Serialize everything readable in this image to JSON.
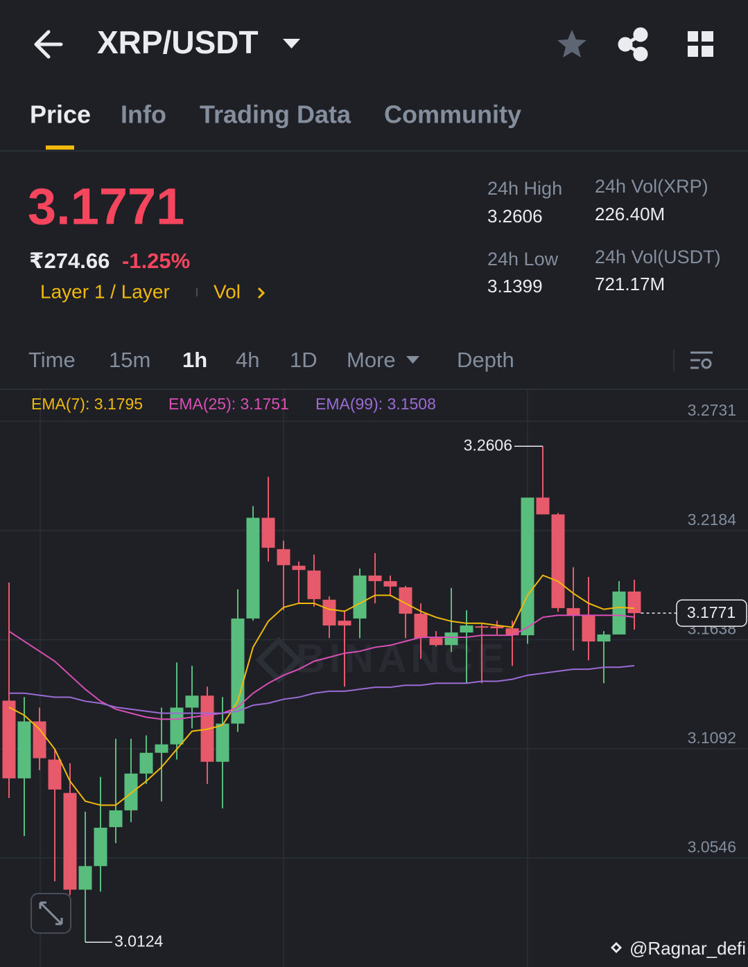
{
  "header": {
    "pair": "XRP/USDT"
  },
  "tabs": [
    "Price",
    "Info",
    "Trading Data",
    "Community"
  ],
  "price": {
    "last": "3.1771",
    "local": "₹274.66",
    "change": "-1.25%",
    "tags": [
      "Layer 1 / Layer",
      "Vol"
    ]
  },
  "stats": [
    {
      "label": "24h High",
      "value": "3.2606"
    },
    {
      "label": "24h Vol(XRP)",
      "value": "226.40M"
    },
    {
      "label": "24h Low",
      "value": "3.1399"
    },
    {
      "label": "24h Vol(USDT)",
      "value": "721.17M"
    }
  ],
  "intervals": [
    "Time",
    "15m",
    "1h",
    "4h",
    "1D",
    "More",
    "Depth"
  ],
  "chart_data": {
    "type": "candlestick",
    "watermark": "BINANCE",
    "up_color": "#58bd7d",
    "down_color": "#e75a6b",
    "grid": true,
    "ylim": [
      3.0,
      3.2891
    ],
    "yticks": [
      3.2731,
      3.2184,
      3.1638,
      3.1092,
      3.0546
    ],
    "open": [
      3.1333,
      3.0944,
      3.1229,
      3.1038,
      3.0871,
      3.0387,
      3.0505,
      3.07,
      3.0784,
      3.0968,
      3.1072,
      3.1114,
      3.1298,
      3.1358,
      3.1027,
      3.1218,
      3.1744,
      3.2248,
      3.2091,
      3.2008,
      3.1984,
      3.1838,
      3.1733,
      3.1744,
      3.1959,
      3.1931,
      3.19,
      3.1768,
      3.1646,
      3.1611,
      3.1674,
      3.1705,
      3.1705,
      3.1695,
      3.166,
      3.2349,
      3.2265,
      3.1796,
      3.1761,
      3.1629,
      3.1664,
      3.1879
    ],
    "high": [
      3.1924,
      3.1351,
      3.1298,
      3.109,
      3.102,
      3.0777,
      3.0951,
      3.1142,
      3.1142,
      3.1159,
      3.1298,
      3.1524,
      3.1507,
      3.1403,
      3.1351,
      3.189,
      3.2307,
      3.2453,
      3.2133,
      3.2029,
      3.2064,
      3.1855,
      3.1785,
      3.1994,
      3.2071,
      3.1959,
      3.1907,
      3.182,
      3.1681,
      3.1897,
      3.1785,
      3.1716,
      3.1733,
      3.1733,
      3.2349,
      3.2606,
      3.2272,
      3.2001,
      3.1952,
      3.1681,
      3.1931,
      3.1938
    ],
    "low": [
      3.0846,
      3.0655,
      3.0985,
      3.0429,
      3.0359,
      3.0124,
      3.0377,
      3.062,
      3.0725,
      3.0916,
      3.0829,
      3.1038,
      3.1194,
      3.0916,
      3.0794,
      3.1177,
      3.1733,
      3.2029,
      3.1785,
      3.182,
      3.1803,
      3.1646,
      3.1403,
      3.1646,
      3.182,
      3.1855,
      3.1646,
      3.1542,
      3.1604,
      3.1577,
      3.142,
      3.142,
      3.1664,
      3.1507,
      3.1618,
      3.2265,
      3.1778,
      3.1584,
      3.1535,
      3.142,
      3.1664,
      3.1688
    ],
    "close": [
      3.0944,
      3.1229,
      3.1045,
      3.0888,
      3.0387,
      3.0505,
      3.0697,
      3.0784,
      3.0968,
      3.1072,
      3.1114,
      3.1298,
      3.1358,
      3.1027,
      3.1218,
      3.1744,
      3.2248,
      3.2098,
      3.2011,
      3.1987,
      3.1841,
      3.1709,
      3.1709,
      3.1959,
      3.1931,
      3.1904,
      3.1768,
      3.1646,
      3.1611,
      3.1674,
      3.1709,
      3.1698,
      3.1695,
      3.166,
      3.2349,
      3.2265,
      3.1796,
      3.1761,
      3.1629,
      3.1664,
      3.1879,
      3.1771
    ],
    "series": [
      {
        "name": "EMA(7): 3.1795",
        "color": "#f0b90b",
        "values": [
          3.13,
          3.126,
          3.119,
          3.109,
          3.093,
          3.083,
          3.081,
          3.081,
          3.087,
          3.093,
          3.1,
          3.109,
          3.118,
          3.119,
          3.121,
          3.133,
          3.16,
          3.173,
          3.18,
          3.182,
          3.182,
          3.179,
          3.178,
          3.182,
          3.186,
          3.186,
          3.182,
          3.178,
          3.175,
          3.173,
          3.172,
          3.172,
          3.171,
          3.17,
          3.186,
          3.196,
          3.193,
          3.187,
          3.182,
          3.179,
          3.18,
          3.1795
        ]
      },
      {
        "name": "EMA(25): 3.1751",
        "color": "#d94fb5",
        "values": [
          3.168,
          3.163,
          3.158,
          3.153,
          3.146,
          3.139,
          3.133,
          3.129,
          3.127,
          3.125,
          3.124,
          3.124,
          3.125,
          3.126,
          3.127,
          3.13,
          3.137,
          3.142,
          3.146,
          3.149,
          3.153,
          3.155,
          3.157,
          3.158,
          3.16,
          3.161,
          3.163,
          3.165,
          3.165,
          3.165,
          3.165,
          3.166,
          3.166,
          3.166,
          3.17,
          3.175,
          3.176,
          3.176,
          3.176,
          3.176,
          3.176,
          3.1751
        ]
      },
      {
        "name": "EMA(99): 3.1508",
        "color": "#9b6bd6",
        "values": [
          3.137,
          3.137,
          3.136,
          3.135,
          3.135,
          3.133,
          3.132,
          3.13,
          3.129,
          3.128,
          3.127,
          3.127,
          3.127,
          3.127,
          3.127,
          3.128,
          3.131,
          3.132,
          3.134,
          3.135,
          3.137,
          3.138,
          3.138,
          3.139,
          3.14,
          3.14,
          3.141,
          3.141,
          3.142,
          3.142,
          3.142,
          3.143,
          3.143,
          3.144,
          3.146,
          3.147,
          3.148,
          3.149,
          3.149,
          3.15,
          3.15,
          3.1508
        ]
      }
    ]
  },
  "footer": {
    "credit": "@Ragnar_defi"
  }
}
